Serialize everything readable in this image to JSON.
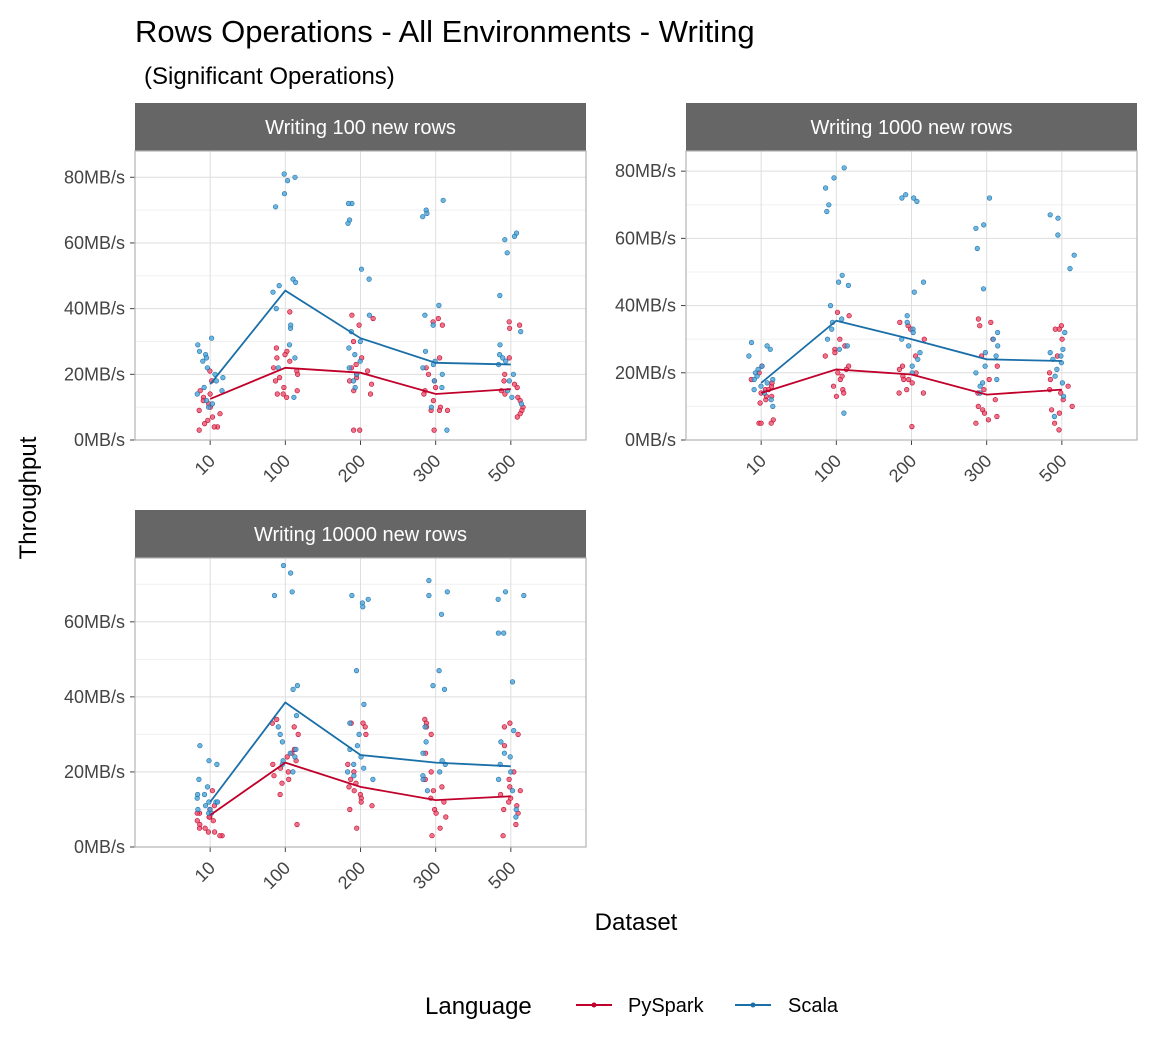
{
  "chart_data": {
    "type": "scatter",
    "title": "Rows Operations - All Environments - Writing",
    "subtitle": "(Significant Operations)",
    "xlabel": "Dataset",
    "ylabel": "Throughput",
    "categories": [
      "10",
      "100",
      "200",
      "300",
      "500"
    ],
    "legend": {
      "title": "Language",
      "placement": "bottom",
      "entries": [
        {
          "name": "PySpark",
          "color": "#c0002a"
        },
        {
          "name": "Scala",
          "color": "#1a6fa8"
        }
      ]
    },
    "grid": true,
    "panels": [
      {
        "strip": "Writing 100 new rows",
        "ylim": [
          0,
          88
        ],
        "yticks": [
          {
            "value": 0,
            "label": "0MB/s"
          },
          {
            "value": 20,
            "label": "20MB/s"
          },
          {
            "value": 40,
            "label": "40MB/s"
          },
          {
            "value": 60,
            "label": "60MB/s"
          },
          {
            "value": 80,
            "label": "80MB/s"
          }
        ],
        "series": [
          {
            "name": "PySpark",
            "mean": [
              12.5,
              22.0,
              20.5,
              14.0,
              15.5
            ],
            "points": [
              [
                21,
                18,
                15,
                13,
                11,
                10,
                9,
                8,
                7,
                6,
                5,
                4,
                4,
                3,
                14,
                12
              ],
              [
                39,
                28,
                27,
                26,
                25,
                22,
                21,
                20,
                18,
                16,
                15,
                14,
                14,
                13,
                24,
                19
              ],
              [
                38,
                37,
                35,
                30,
                25,
                23,
                22,
                21,
                20,
                19,
                18,
                17,
                15,
                14,
                3,
                3
              ],
              [
                37,
                36,
                35,
                25,
                22,
                20,
                18,
                15,
                14,
                12,
                10,
                9,
                9,
                9,
                3,
                16
              ],
              [
                36,
                35,
                34,
                25,
                20,
                18,
                16,
                15,
                14,
                13,
                12,
                10,
                9,
                8,
                7,
                17
              ]
            ]
          },
          {
            "name": "Scala",
            "mean": [
              17.0,
              45.5,
              31.0,
              23.5,
              23.0
            ],
            "points": [
              [
                31,
                29,
                26,
                25,
                24,
                22,
                20,
                18,
                16,
                15,
                14,
                12,
                11,
                10,
                27,
                19
              ],
              [
                81,
                80,
                79,
                75,
                71,
                49,
                48,
                47,
                45,
                40,
                35,
                34,
                29,
                25,
                22,
                13
              ],
              [
                72,
                72,
                67,
                66,
                52,
                49,
                38,
                33,
                30,
                28,
                26,
                24,
                22,
                20,
                18,
                16
              ],
              [
                73,
                70,
                69,
                68,
                41,
                38,
                35,
                27,
                24,
                23,
                22,
                20,
                18,
                16,
                10,
                3
              ],
              [
                63,
                62,
                61,
                57,
                44,
                33,
                29,
                26,
                25,
                24,
                23,
                20,
                18,
                15,
                13,
                11
              ]
            ]
          }
        ]
      },
      {
        "strip": "Writing 1000 new rows",
        "ylim": [
          0,
          86
        ],
        "yticks": [
          {
            "value": 0,
            "label": "0MB/s"
          },
          {
            "value": 20,
            "label": "20MB/s"
          },
          {
            "value": 40,
            "label": "40MB/s"
          },
          {
            "value": 60,
            "label": "60MB/s"
          },
          {
            "value": 80,
            "label": "80MB/s"
          }
        ],
        "series": [
          {
            "name": "PySpark",
            "mean": [
              14.0,
              21.0,
              19.5,
              13.5,
              15.0
            ],
            "points": [
              [
                22,
                20,
                18,
                16,
                15,
                14,
                13,
                12,
                11,
                6,
                5,
                5,
                5,
                13,
                15,
                17
              ],
              [
                38,
                37,
                30,
                28,
                27,
                25,
                22,
                20,
                18,
                16,
                15,
                14,
                13,
                26,
                21,
                19
              ],
              [
                35,
                34,
                33,
                30,
                25,
                22,
                20,
                19,
                18,
                17,
                15,
                14,
                14,
                4,
                21,
                18
              ],
              [
                36,
                35,
                34,
                30,
                25,
                22,
                18,
                15,
                12,
                10,
                9,
                8,
                7,
                6,
                5,
                14
              ],
              [
                34,
                33,
                33,
                30,
                25,
                20,
                18,
                16,
                14,
                12,
                10,
                9,
                8,
                5,
                3,
                15
              ]
            ]
          },
          {
            "name": "Scala",
            "mean": [
              17.0,
              35.5,
              30.0,
              24.0,
              23.5
            ],
            "points": [
              [
                29,
                28,
                27,
                25,
                22,
                20,
                19,
                18,
                17,
                16,
                15,
                14,
                12,
                10,
                21,
                18
              ],
              [
                81,
                78,
                75,
                70,
                68,
                49,
                47,
                46,
                40,
                35,
                33,
                30,
                28,
                27,
                8,
                36
              ],
              [
                73,
                72,
                72,
                71,
                47,
                44,
                37,
                35,
                33,
                32,
                30,
                28,
                26,
                24,
                22,
                20
              ],
              [
                72,
                64,
                63,
                57,
                45,
                32,
                30,
                28,
                26,
                25,
                22,
                20,
                18,
                17,
                16,
                14
              ],
              [
                67,
                66,
                61,
                55,
                51,
                32,
                27,
                26,
                25,
                24,
                23,
                21,
                19,
                17,
                13,
                7
              ]
            ]
          }
        ]
      },
      {
        "strip": "Writing 10000 new rows",
        "ylim": [
          0,
          77
        ],
        "yticks": [
          {
            "value": 0,
            "label": "0MB/s"
          },
          {
            "value": 20,
            "label": "20MB/s"
          },
          {
            "value": 40,
            "label": "40MB/s"
          },
          {
            "value": 60,
            "label": "60MB/s"
          }
        ],
        "series": [
          {
            "name": "PySpark",
            "mean": [
              8.5,
              22.5,
              16.0,
              12.5,
              13.5
            ],
            "points": [
              [
                15,
                11,
                10,
                9,
                9,
                8,
                8,
                7,
                7,
                6,
                5,
                5,
                4,
                4,
                3,
                3
              ],
              [
                34,
                33,
                32,
                30,
                26,
                25,
                24,
                23,
                22,
                21,
                20,
                19,
                18,
                17,
                14,
                6
              ],
              [
                33,
                33,
                32,
                30,
                22,
                20,
                18,
                17,
                16,
                15,
                14,
                13,
                12,
                11,
                10,
                5
              ],
              [
                34,
                33,
                32,
                30,
                25,
                20,
                18,
                15,
                13,
                12,
                10,
                9,
                8,
                5,
                3,
                16
              ],
              [
                33,
                32,
                30,
                27,
                20,
                18,
                16,
                15,
                14,
                13,
                12,
                10,
                9,
                6,
                3,
                11
              ]
            ]
          },
          {
            "name": "Scala",
            "mean": [
              12.0,
              38.5,
              24.5,
              22.5,
              21.5
            ],
            "points": [
              [
                27,
                23,
                22,
                18,
                16,
                14,
                13,
                12,
                12,
                11,
                10,
                10,
                9,
                9,
                14,
                12
              ],
              [
                75,
                73,
                68,
                67,
                43,
                42,
                35,
                32,
                30,
                28,
                26,
                25,
                24,
                23,
                22,
                20
              ],
              [
                67,
                66,
                65,
                64,
                47,
                38,
                33,
                30,
                27,
                26,
                24,
                22,
                20,
                18,
                21,
                19
              ],
              [
                71,
                68,
                67,
                62,
                47,
                43,
                42,
                32,
                28,
                25,
                23,
                22,
                20,
                19,
                18,
                15
              ],
              [
                68,
                67,
                66,
                57,
                57,
                44,
                31,
                28,
                25,
                24,
                22,
                20,
                18,
                15,
                10,
                8
              ]
            ]
          }
        ]
      }
    ]
  }
}
